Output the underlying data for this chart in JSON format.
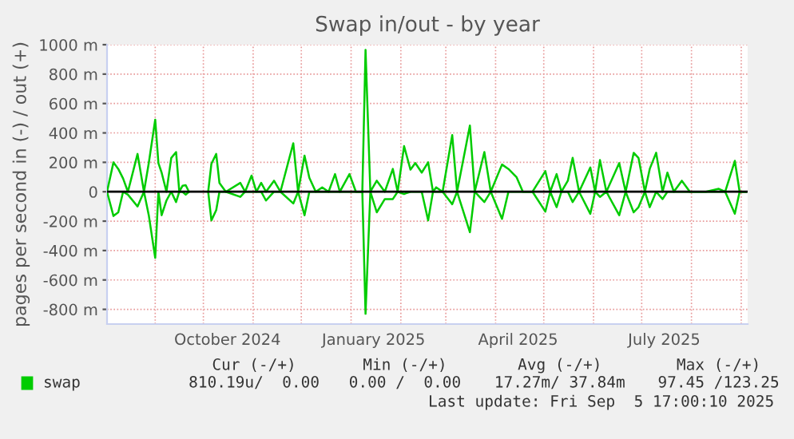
{
  "chart_data": {
    "type": "line",
    "title": "Swap in/out - by year",
    "ylabel": "pages per second in (-) / out (+)",
    "x": [
      "2024-08-02",
      "2024-08-06",
      "2024-08-09",
      "2024-08-12",
      "2024-08-15",
      "2024-08-21",
      "2024-08-25",
      "2024-08-28",
      "2024-09-01",
      "2024-09-03",
      "2024-09-05",
      "2024-09-08",
      "2024-09-11",
      "2024-09-14",
      "2024-09-16",
      "2024-09-18",
      "2024-09-20",
      "2024-09-22",
      "2024-09-28",
      "2024-10-04",
      "2024-10-06",
      "2024-10-09",
      "2024-10-11",
      "2024-10-15",
      "2024-10-24",
      "2024-10-27",
      "2024-10-31",
      "2024-11-03",
      "2024-11-06",
      "2024-11-09",
      "2024-11-14",
      "2024-11-18",
      "2024-11-26",
      "2024-11-29",
      "2024-12-03",
      "2024-12-06",
      "2024-12-10",
      "2024-12-14",
      "2024-12-18",
      "2024-12-22",
      "2024-12-25",
      "2024-12-31",
      "2025-01-04",
      "2025-01-08",
      "2025-01-10",
      "2025-01-13",
      "2025-01-17",
      "2025-01-22",
      "2025-01-27",
      "2025-01-30",
      "2025-02-03",
      "2025-02-07",
      "2025-02-10",
      "2025-02-14",
      "2025-02-18",
      "2025-02-21",
      "2025-02-23",
      "2025-02-27",
      "2025-03-05",
      "2025-03-08",
      "2025-03-16",
      "2025-03-19",
      "2025-03-25",
      "2025-03-29",
      "2025-04-05",
      "2025-04-09",
      "2025-04-14",
      "2025-04-18",
      "2025-04-24",
      "2025-05-02",
      "2025-05-05",
      "2025-05-09",
      "2025-05-12",
      "2025-05-16",
      "2025-05-19",
      "2025-05-23",
      "2025-05-30",
      "2025-06-02",
      "2025-06-05",
      "2025-06-09",
      "2025-06-17",
      "2025-06-21",
      "2025-06-26",
      "2025-06-29",
      "2025-07-03",
      "2025-07-06",
      "2025-07-10",
      "2025-07-14",
      "2025-07-17",
      "2025-07-21",
      "2025-07-26",
      "2025-07-31",
      "2025-08-10",
      "2025-08-18",
      "2025-08-22",
      "2025-08-28",
      "2025-08-31",
      "2025-09-04"
    ],
    "series": [
      {
        "name": "swap",
        "color": "#00cc00",
        "values": [
          0,
          200,
          155,
          90,
          0,
          257,
          0,
          195,
          490,
          195,
          130,
          0,
          230,
          270,
          0,
          40,
          45,
          0,
          null,
          0,
          190,
          257,
          60,
          0,
          60,
          0,
          110,
          0,
          60,
          0,
          75,
          0,
          330,
          0,
          245,
          95,
          0,
          30,
          0,
          120,
          0,
          120,
          0,
          0,
          965,
          0,
          75,
          0,
          155,
          0,
          310,
          150,
          195,
          130,
          200,
          0,
          30,
          0,
          385,
          0,
          450,
          0,
          270,
          0,
          185,
          155,
          100,
          0,
          0,
          140,
          0,
          120,
          0,
          75,
          230,
          0,
          165,
          0,
          215,
          0,
          195,
          0,
          265,
          230,
          0,
          155,
          265,
          0,
          130,
          0,
          75,
          0,
          0,
          20,
          0,
          210,
          0,
          0
        ]
      },
      {
        "color": "#00cc00",
        "values": [
          0,
          -165,
          -140,
          0,
          -20,
          -100,
          0,
          -160,
          -450,
          0,
          -160,
          -60,
          0,
          -70,
          0,
          0,
          -20,
          0,
          null,
          0,
          -195,
          -125,
          0,
          0,
          -35,
          0,
          0,
          0,
          0,
          -60,
          0,
          0,
          -80,
          0,
          -160,
          0,
          0,
          0,
          0,
          0,
          0,
          0,
          0,
          0,
          -830,
          0,
          -140,
          -50,
          -50,
          0,
          -15,
          0,
          0,
          0,
          -195,
          0,
          0,
          0,
          -85,
          0,
          -275,
          0,
          -70,
          0,
          -185,
          0,
          0,
          0,
          0,
          -135,
          0,
          -105,
          0,
          0,
          -70,
          0,
          -150,
          0,
          -35,
          0,
          -160,
          0,
          -140,
          -105,
          0,
          -105,
          0,
          -50,
          0,
          0,
          0,
          0,
          0,
          0,
          0,
          -150,
          0,
          0
        ]
      }
    ],
    "xlim": [
      "2024-08-02",
      "2025-09-05"
    ],
    "xticks": [
      {
        "value": "2024-09-01",
        "label": null
      },
      {
        "value": "2024-10-01",
        "label": null
      },
      {
        "value": "2024-10-16",
        "label": "October 2024"
      },
      {
        "value": "2024-11-01",
        "label": null
      },
      {
        "value": "2024-12-01",
        "label": null
      },
      {
        "value": "2025-01-01",
        "label": null
      },
      {
        "value": "2025-01-15",
        "label": "January 2025"
      },
      {
        "value": "2025-02-01",
        "label": null
      },
      {
        "value": "2025-03-01",
        "label": null
      },
      {
        "value": "2025-04-01",
        "label": null
      },
      {
        "value": "2025-04-15",
        "label": "April 2025"
      },
      {
        "value": "2025-05-01",
        "label": null
      },
      {
        "value": "2025-06-01",
        "label": null
      },
      {
        "value": "2025-07-01",
        "label": null
      },
      {
        "value": "2025-07-15",
        "label": "July 2025"
      },
      {
        "value": "2025-08-01",
        "label": null
      },
      {
        "value": "2025-09-01",
        "label": null
      }
    ],
    "ylim": [
      -900,
      1000
    ],
    "yticks": [
      {
        "value": -800,
        "label": "-800 m"
      },
      {
        "value": -600,
        "label": "-600 m"
      },
      {
        "value": -400,
        "label": "-400 m"
      },
      {
        "value": -200,
        "label": "-200 m"
      },
      0,
      {
        "value": 200,
        "label": "200 m"
      },
      {
        "value": 400,
        "label": "400 m"
      },
      {
        "value": 600,
        "label": "600 m"
      },
      {
        "value": 800,
        "label": "800 m"
      },
      {
        "value": 1000,
        "label": "1000 m"
      }
    ],
    "ref_lines": [
      {
        "axis": "y",
        "value": 0,
        "color": "#000000"
      }
    ],
    "grid": true,
    "legend": "bottom left",
    "annotations": [
      "Cur (-/+)",
      "Min (-/+)",
      "Avg (-/+)",
      "Max (-/+)",
      "810.19u/  0.00",
      "0.00 /  0.00",
      "17.27m/ 37.84m",
      "97.45 /123.25",
      "Last update: Fri Sep  5 17:00:10 2025"
    ]
  }
}
